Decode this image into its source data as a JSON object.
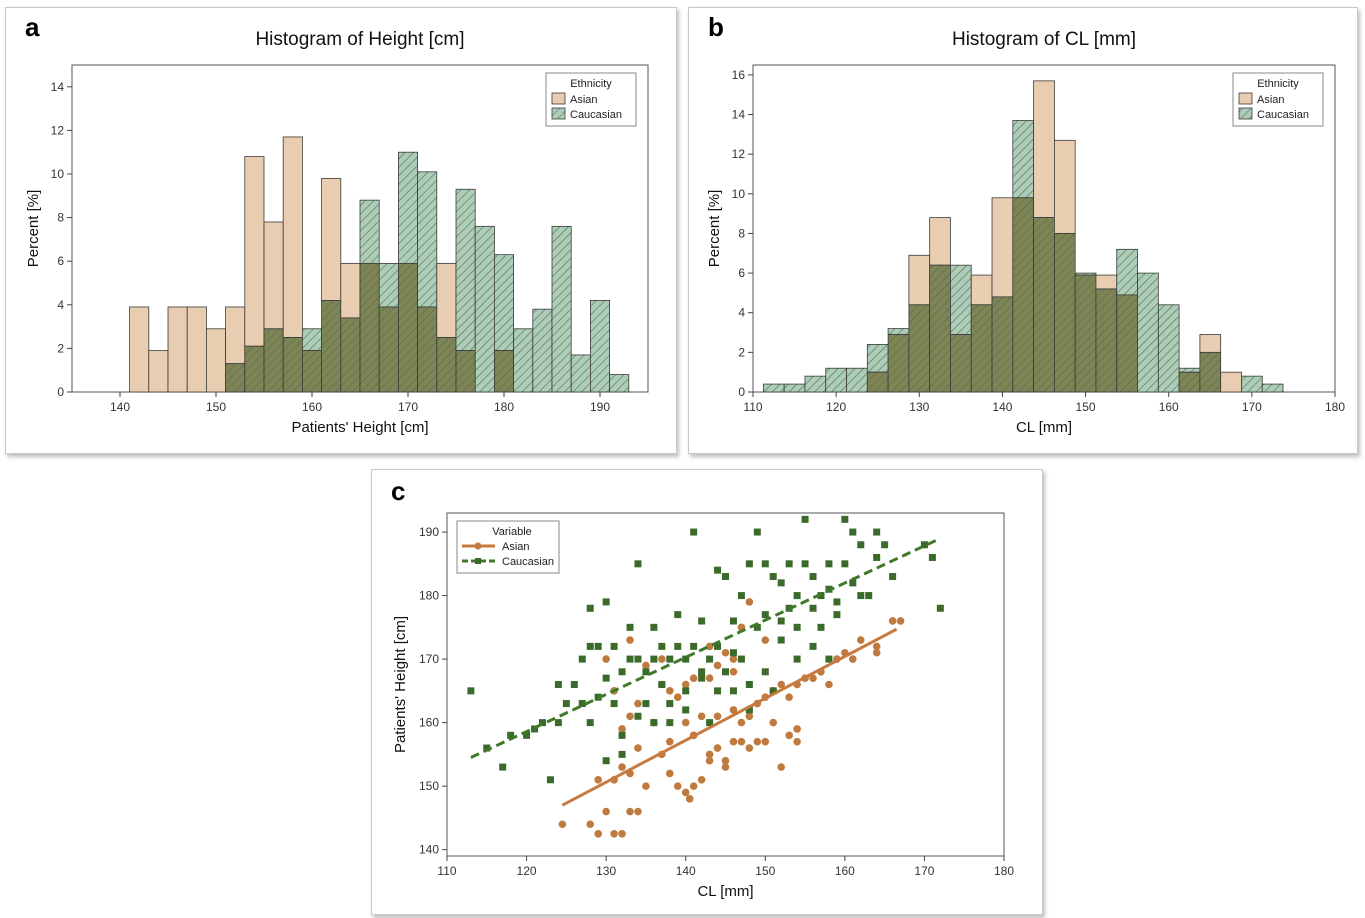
{
  "colors": {
    "asian_fill": "#e8cdb0",
    "caucasian_fill": "#aecdb8",
    "overlap_fill": "#7f8455",
    "bar_stroke": "#3a3a3a",
    "asian_point": "#bf7a3f",
    "caucasian_point": "#3b6b2a",
    "asian_line": "#c77a40",
    "caucasian_line": "#3f7a2a",
    "hatch": "#4e6e52"
  },
  "panels": {
    "a": {
      "letter": "a"
    },
    "b": {
      "letter": "b"
    },
    "c": {
      "letter": "c"
    }
  },
  "chart_data": [
    {
      "id": "a",
      "type": "bar",
      "title": "Histogram of Height [cm]",
      "xlabel": "Patients' Height [cm]",
      "ylabel": "Percent [%]",
      "xlim": [
        135,
        195
      ],
      "ylim": [
        0,
        15
      ],
      "xticks": [
        140,
        150,
        160,
        170,
        180,
        190
      ],
      "yticks": [
        0,
        2,
        4,
        6,
        8,
        10,
        12,
        14
      ],
      "bin_width": 2,
      "x": [
        142,
        144,
        146,
        148,
        150,
        152,
        154,
        156,
        158,
        160,
        162,
        164,
        166,
        168,
        170,
        172,
        174,
        176,
        178,
        180,
        182,
        184,
        186,
        188,
        190,
        192
      ],
      "legend": {
        "title": "Ethnicity",
        "position": "top-right"
      },
      "series": [
        {
          "name": "Asian",
          "values": [
            3.9,
            1.9,
            3.9,
            3.9,
            2.9,
            3.9,
            10.8,
            7.8,
            11.7,
            1.9,
            9.8,
            5.9,
            5.9,
            3.9,
            5.9,
            3.9,
            5.9,
            1.9,
            0,
            1.9,
            0,
            0,
            0,
            0,
            0,
            0
          ]
        },
        {
          "name": "Caucasian",
          "values": [
            0,
            0,
            0,
            0,
            0,
            1.3,
            2.1,
            2.9,
            2.5,
            2.9,
            4.2,
            3.4,
            8.8,
            5.9,
            11.0,
            10.1,
            2.5,
            9.3,
            7.6,
            6.3,
            2.9,
            3.8,
            7.6,
            1.7,
            4.2,
            0.8
          ]
        }
      ]
    },
    {
      "id": "b",
      "type": "bar",
      "title": "Histogram of CL [mm]",
      "xlabel": "CL [mm]",
      "ylabel": "Percent [%]",
      "xlim": [
        110,
        180
      ],
      "ylim": [
        0,
        16.5
      ],
      "xticks": [
        110,
        120,
        130,
        140,
        150,
        160,
        170,
        180
      ],
      "yticks": [
        0,
        2,
        4,
        6,
        8,
        10,
        12,
        14,
        16
      ],
      "bin_width": 2.5,
      "x": [
        112.5,
        115,
        117.5,
        120,
        122.5,
        125,
        127.5,
        130,
        132.5,
        135,
        137.5,
        140,
        142.5,
        145,
        147.5,
        150,
        152.5,
        155,
        157.5,
        160,
        162.5,
        165,
        167.5,
        170,
        172.5
      ],
      "legend": {
        "title": "Ethnicity",
        "position": "top-right"
      },
      "series": [
        {
          "name": "Asian",
          "values": [
            0,
            0,
            0,
            0,
            0,
            1.0,
            2.9,
            6.9,
            8.8,
            2.9,
            5.9,
            9.8,
            9.8,
            15.7,
            12.7,
            5.9,
            5.9,
            4.9,
            0,
            0,
            1.0,
            2.9,
            1.0,
            0,
            0
          ]
        },
        {
          "name": "Caucasian",
          "values": [
            0.4,
            0.4,
            0.8,
            1.2,
            1.2,
            2.4,
            3.2,
            4.4,
            6.4,
            6.4,
            4.4,
            4.8,
            13.7,
            8.8,
            8.0,
            6.0,
            5.2,
            7.2,
            6.0,
            4.4,
            1.2,
            2.0,
            0,
            0.8,
            0.4
          ]
        }
      ]
    },
    {
      "id": "c",
      "type": "scatter",
      "title": "",
      "xlabel": "CL [mm]",
      "ylabel": "Patients' Height [cm]",
      "xlim": [
        110,
        180
      ],
      "ylim": [
        139,
        193
      ],
      "xticks": [
        110,
        120,
        130,
        140,
        150,
        160,
        170,
        180
      ],
      "yticks": [
        140,
        150,
        160,
        170,
        180,
        190
      ],
      "legend": {
        "title": "Variable",
        "position": "top-left"
      },
      "series": [
        {
          "name": "Asian",
          "marker": "circle",
          "fit": {
            "x": [
              124.5,
              166.5
            ],
            "y": [
              147,
              174.7
            ]
          },
          "points": [
            [
              124.5,
              144
            ],
            [
              128,
              144
            ],
            [
              129,
              142.5
            ],
            [
              131,
              142.5
            ],
            [
              132,
              142.5
            ],
            [
              130,
              146
            ],
            [
              133,
              146
            ],
            [
              134,
              146
            ],
            [
              129,
              151
            ],
            [
              131,
              151
            ],
            [
              133,
              152
            ],
            [
              135,
              150
            ],
            [
              132,
              153
            ],
            [
              134,
              156
            ],
            [
              137,
              155
            ],
            [
              138,
              152
            ],
            [
              139,
              150
            ],
            [
              140,
              149
            ],
            [
              140.5,
              148
            ],
            [
              141,
              150
            ],
            [
              142,
              151
            ],
            [
              143,
              154
            ],
            [
              143,
              155
            ],
            [
              144,
              156
            ],
            [
              145,
              153
            ],
            [
              145,
              154
            ],
            [
              146,
              157
            ],
            [
              147,
              157
            ],
            [
              148,
              156
            ],
            [
              149,
              157
            ],
            [
              150,
              157
            ],
            [
              151,
              160
            ],
            [
              152,
              153
            ],
            [
              153,
              158
            ],
            [
              154,
              157
            ],
            [
              154,
              159
            ],
            [
              132,
              159
            ],
            [
              133,
              161
            ],
            [
              136,
              160
            ],
            [
              138,
              157
            ],
            [
              140,
              160
            ],
            [
              141,
              158
            ],
            [
              142,
              161
            ],
            [
              144,
              161
            ],
            [
              146,
              162
            ],
            [
              147,
              160
            ],
            [
              148,
              161
            ],
            [
              149,
              163
            ],
            [
              150,
              164
            ],
            [
              151,
              165
            ],
            [
              152,
              166
            ],
            [
              153,
              164
            ],
            [
              154,
              166
            ],
            [
              155,
              167
            ],
            [
              156,
              167
            ],
            [
              157,
              168
            ],
            [
              158,
              166
            ],
            [
              159,
              170
            ],
            [
              160,
              171
            ],
            [
              161,
              170
            ],
            [
              162,
              173
            ],
            [
              164,
              171
            ],
            [
              164,
              172
            ],
            [
              166,
              176
            ],
            [
              167,
              176
            ],
            [
              130,
              170
            ],
            [
              133,
              173
            ],
            [
              135,
              169
            ],
            [
              137,
              170
            ],
            [
              138,
              165
            ],
            [
              139,
              164
            ],
            [
              141,
              167
            ],
            [
              143,
              172
            ],
            [
              144,
              169
            ],
            [
              146,
              170
            ],
            [
              147,
              175
            ],
            [
              148,
              179
            ],
            [
              150,
              173
            ],
            [
              146,
              168
            ],
            [
              145,
              171
            ],
            [
              143,
              167
            ],
            [
              140,
              166
            ],
            [
              137,
              166
            ],
            [
              131,
              165
            ],
            [
              134,
              163
            ]
          ]
        },
        {
          "name": "Caucasian",
          "marker": "square",
          "fit": {
            "x": [
              113,
              172
            ],
            "y": [
              154.5,
              189
            ]
          },
          "points": [
            [
              113,
              165
            ],
            [
              115,
              156
            ],
            [
              117,
              153
            ],
            [
              118,
              158
            ],
            [
              120,
              158
            ],
            [
              121,
              159
            ],
            [
              122,
              160
            ],
            [
              123,
              151
            ],
            [
              124,
              160
            ],
            [
              124,
              166
            ],
            [
              125,
              163
            ],
            [
              126,
              166
            ],
            [
              127,
              163
            ],
            [
              127,
              170
            ],
            [
              128,
              172
            ],
            [
              128,
              178
            ],
            [
              129,
              172
            ],
            [
              129,
              164
            ],
            [
              130,
              179
            ],
            [
              130,
              167
            ],
            [
              131,
              172
            ],
            [
              131,
              163
            ],
            [
              132,
              168
            ],
            [
              132,
              158
            ],
            [
              133,
              170
            ],
            [
              133,
              175
            ],
            [
              134,
              170
            ],
            [
              134,
              185
            ],
            [
              135,
              168
            ],
            [
              135,
              163
            ],
            [
              136,
              175
            ],
            [
              136,
              170
            ],
            [
              137,
              172
            ],
            [
              137,
              166
            ],
            [
              138,
              170
            ],
            [
              138,
              160
            ],
            [
              139,
              177
            ],
            [
              139,
              172
            ],
            [
              140,
              170
            ],
            [
              140,
              165
            ],
            [
              141,
              190
            ],
            [
              141,
              172
            ],
            [
              142,
              168
            ],
            [
              142,
              176
            ],
            [
              143,
              170
            ],
            [
              143,
              160
            ],
            [
              144,
              184
            ],
            [
              144,
              172
            ],
            [
              145,
              183
            ],
            [
              145,
              168
            ],
            [
              146,
              176
            ],
            [
              146,
              165
            ],
            [
              147,
              180
            ],
            [
              147,
              170
            ],
            [
              148,
              185
            ],
            [
              148,
              162
            ],
            [
              149,
              190
            ],
            [
              149,
              175
            ],
            [
              150,
              185
            ],
            [
              150,
              168
            ],
            [
              151,
              183
            ],
            [
              151,
              165
            ],
            [
              152,
              182
            ],
            [
              152,
              173
            ],
            [
              153,
              185
            ],
            [
              153,
              178
            ],
            [
              154,
              180
            ],
            [
              154,
              170
            ],
            [
              155,
              192
            ],
            [
              155,
              185
            ],
            [
              156,
              178
            ],
            [
              156,
              183
            ],
            [
              157,
              180
            ],
            [
              157,
              175
            ],
            [
              158,
              185
            ],
            [
              158,
              170
            ],
            [
              159,
              179
            ],
            [
              159,
              177
            ],
            [
              160,
              192
            ],
            [
              160,
              185
            ],
            [
              161,
              190
            ],
            [
              161,
              182
            ],
            [
              162,
              188
            ],
            [
              163,
              180
            ],
            [
              164,
              186
            ],
            [
              164,
              190
            ],
            [
              165,
              188
            ],
            [
              166,
              183
            ],
            [
              170,
              188
            ],
            [
              171,
              186
            ],
            [
              172,
              178
            ],
            [
              138,
              163
            ],
            [
              140,
              162
            ],
            [
              142,
              167
            ],
            [
              144,
              165
            ],
            [
              146,
              171
            ],
            [
              148,
              166
            ],
            [
              150,
              177
            ],
            [
              152,
              176
            ],
            [
              154,
              175
            ],
            [
              156,
              172
            ],
            [
              158,
              181
            ],
            [
              162,
              180
            ],
            [
              134,
              161
            ],
            [
              136,
              160
            ],
            [
              130,
              154
            ],
            [
              132,
              155
            ],
            [
              128,
              160
            ]
          ]
        }
      ]
    }
  ]
}
